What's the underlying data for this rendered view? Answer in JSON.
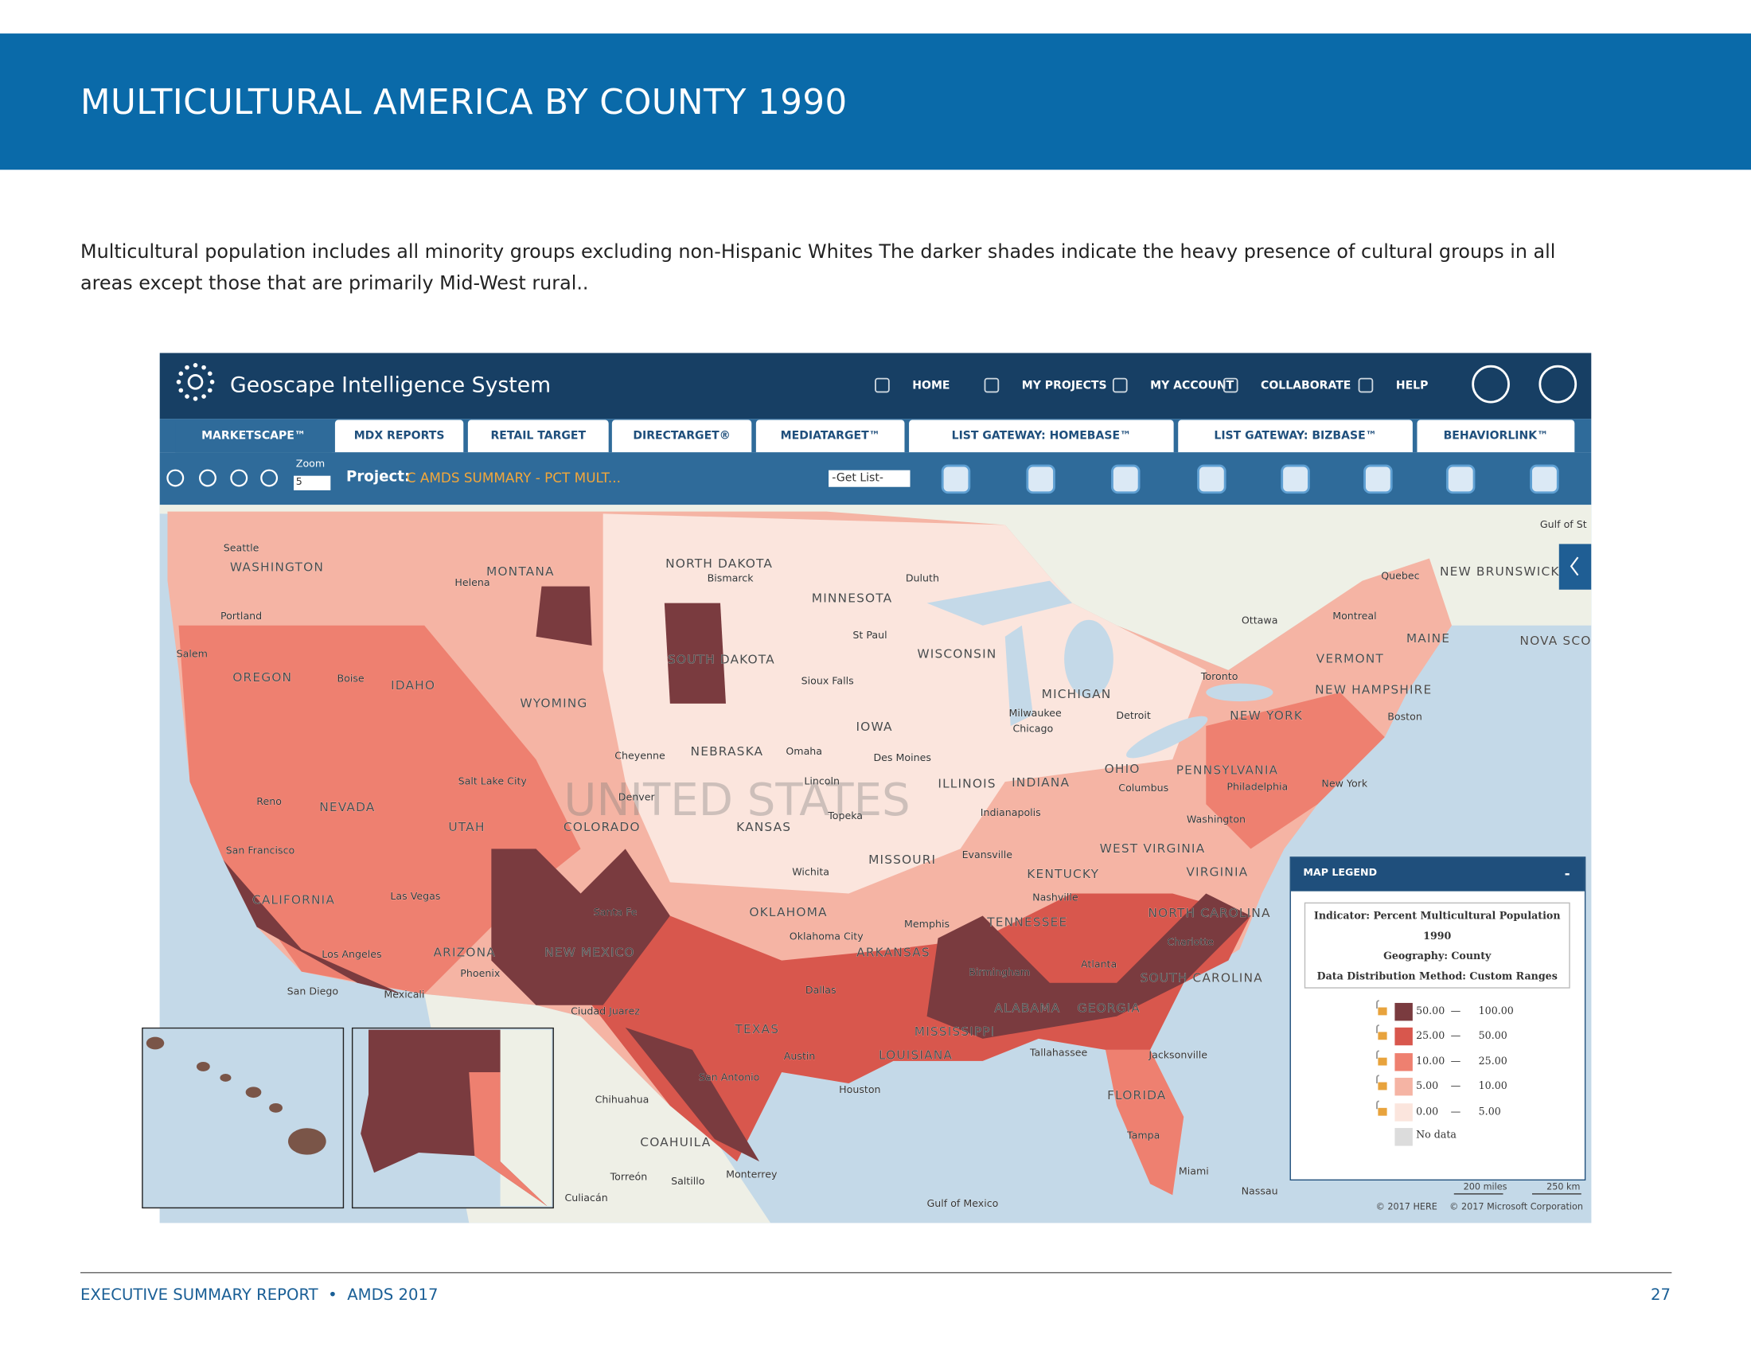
{
  "header": {
    "title": "MULTICULTURAL AMERICA BY COUNTY 1990"
  },
  "intro": [
    "Multicultural population includes all minority groups excluding non-Hispanic Whites The darker shades indicate the heavy presence of cultural groups in all",
    "areas except those that are primarily Mid-West rural.."
  ],
  "app": {
    "title": "Geoscape Intelligence System",
    "nav": [
      "HOME",
      "MY PROJECTS",
      "MY ACCOUNT",
      "COLLABORATE",
      "HELP"
    ],
    "tabs": [
      "MARKETSCAPE™",
      "MDX REPORTS",
      "RETAIL TARGET",
      "DIRECTARGET®",
      "MEDIATARGET™",
      "LIST GATEWAY: HOMEBASE™",
      "LIST GATEWAY: BIZBASE™",
      "BEHAVIORLINK™"
    ],
    "toolbar": {
      "zoom_label": "Zoom",
      "zoom_value": "5",
      "project_label": "Project:",
      "project_name": "C AMDS SUMMARY - PCT MULT...",
      "get_list": "-Get List-"
    }
  },
  "map": {
    "watermark": "UNITED STATES",
    "labels": [
      "Seattle",
      "WASHINGTON",
      "Portland",
      "Salem",
      "OREGON",
      "Boise",
      "IDAHO",
      "Helena",
      "MONTANA",
      "WYOMING",
      "NORTH DAKOTA",
      "Bismarck",
      "MINNESOTA",
      "Duluth",
      "St Paul",
      "SOUTH DAKOTA",
      "WISCONSIN",
      "Sioux Falls",
      "IOWA",
      "NEBRASKA",
      "Omaha",
      "Des Moines",
      "Cheyenne",
      "Salt Lake City",
      "Denver",
      "Reno",
      "NEVADA",
      "UTAH",
      "COLORADO",
      "KANSAS",
      "Lincoln",
      "Topeka",
      "San Francisco",
      "CALIFORNIA",
      "Las Vegas",
      "Los Angeles",
      "ARIZONA",
      "Phoenix",
      "NEW MEXICO",
      "Santa Fe",
      "San Diego",
      "Mexicali",
      "OKLAHOMA",
      "Oklahoma City",
      "Wichita",
      "MISSOURI",
      "ILLINOIS",
      "INDIANA",
      "Indianapolis",
      "Chicago",
      "Milwaukee",
      "MICHIGAN",
      "Detroit",
      "OHIO",
      "Columbus",
      "Toronto",
      "Ottawa",
      "Montreal",
      "Quebec",
      "NEW BRUNSWICK",
      "MAINE",
      "NOVA SCO",
      "VERMONT",
      "NEW HAMPSHIRE",
      "Boston",
      "NEW YORK",
      "New York",
      "PENNSYLVANIA",
      "Philadelphia",
      "Washington",
      "WEST VIRGINIA",
      "VIRGINIA",
      "KENTUCKY",
      "Nashville",
      "TENNESSEE",
      "Memphis",
      "ARKANSAS",
      "Evansville",
      "NORTH CAROLINA",
      "Charlotte",
      "SOUTH CAROLINA",
      "Atlanta",
      "GEORGIA",
      "ALABAMA",
      "Birmingham",
      "MISSISSIPPI",
      "LOUISIANA",
      "Tallahassee",
      "Jacksonville",
      "FLORIDA",
      "Tampa",
      "Miami",
      "Nassau",
      "TEXAS",
      "Dallas",
      "Austin",
      "San Antonio",
      "Houston",
      "Ciudad Juarez",
      "Chihuahua",
      "COAHUILA",
      "Torreón",
      "Saltillo",
      "Monterrey",
      "Culiacán",
      "Gulf of Mexico",
      "Gulf of St"
    ],
    "scale": [
      "200 miles",
      "250 km"
    ],
    "credits": [
      "© 2017 HERE",
      "© 2017 Microsoft Corporation"
    ]
  },
  "legend": {
    "title": "MAP LEGEND",
    "collapse": "-",
    "indicator": [
      "Indicator: Percent Multicultural Population",
      "1990"
    ],
    "geography": "Geography: County",
    "method": "Data Distribution Method: Custom Ranges",
    "ranges": [
      {
        "from": "50.00",
        "to": "100.00",
        "color": "#7a3b3f"
      },
      {
        "from": "25.00",
        "to": "50.00",
        "color": "#d8574d"
      },
      {
        "from": "10.00",
        "to": "25.00",
        "color": "#ee8070"
      },
      {
        "from": "5.00",
        "to": "10.00",
        "color": "#f5b4a4"
      },
      {
        "from": "0.00",
        "to": "5.00",
        "color": "#fbe5dd"
      }
    ],
    "dash": "—",
    "no_data": {
      "label": "No data",
      "color": "#dcdcdc"
    }
  },
  "footer": {
    "left": "EXECUTIVE SUMMARY REPORT  •  AMDS 2017",
    "page": "27"
  }
}
